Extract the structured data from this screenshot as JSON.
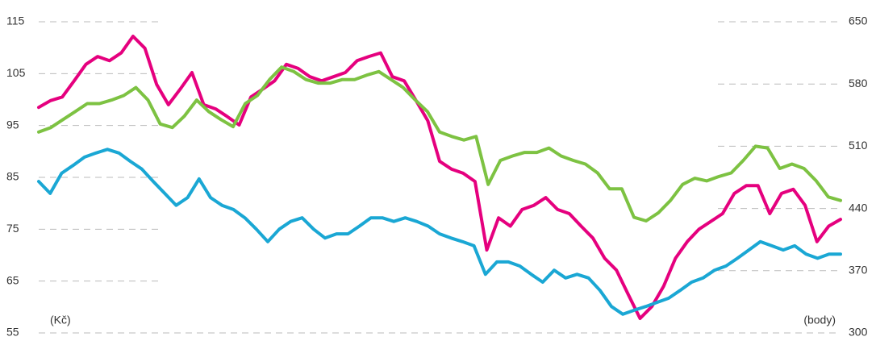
{
  "chart_data": {
    "type": "line",
    "y_label": "(Kč)",
    "y2_label": "(body)",
    "ylim": [
      55,
      115
    ],
    "yticks": [
      55,
      65,
      75,
      85,
      95,
      105,
      115
    ],
    "y2lim": [
      300,
      650
    ],
    "y2ticks": [
      300,
      370,
      440,
      510,
      580,
      650
    ],
    "grid": true,
    "series": [
      {
        "color": "#e5007e",
        "values": [
          98.5,
          99.8,
          100.5,
          103.6,
          106.8,
          108.3,
          107.5,
          109,
          112.2,
          109.9,
          102.9,
          99,
          102,
          105.2,
          99,
          98.2,
          96.7,
          95.1,
          100.5,
          102,
          103.6,
          106.8,
          106,
          104.4,
          103.6,
          104.4,
          105.2,
          107.5,
          108.3,
          109,
          104.4,
          103.6,
          99.8,
          95.9,
          88.1,
          86.6,
          85.8,
          84.2,
          71,
          77.2,
          75.6,
          78.8,
          79.6,
          81.1,
          78.8,
          78,
          75.6,
          73.3,
          69.4,
          67.1,
          62.4,
          57.8,
          60.1,
          64,
          69.4,
          72.6,
          75,
          76.5,
          78,
          81.9,
          83.4,
          83.4,
          78,
          81.9,
          82.7,
          79.6,
          72.6,
          75.6,
          76.9
        ]
      },
      {
        "color": "#7dc242",
        "axis": "y2",
        "values": [
          526,
          531,
          540,
          549,
          558,
          558,
          562,
          567,
          576,
          562,
          535,
          531,
          544,
          562,
          549,
          540,
          532,
          558,
          567,
          585,
          599,
          594,
          585,
          581,
          581,
          585,
          585,
          590,
          594,
          585,
          576,
          562,
          549,
          526,
          521,
          517,
          521,
          467,
          494,
          499,
          503,
          503,
          508,
          499,
          494,
          490,
          480,
          462,
          462,
          430,
          426,
          435,
          449,
          467,
          474,
          471,
          476,
          480,
          494,
          510,
          508,
          485,
          490,
          485,
          471,
          453,
          449
        ]
      },
      {
        "color": "#1aa7d4",
        "values": [
          84.2,
          81.9,
          85.8,
          87.3,
          88.9,
          89.7,
          90.4,
          89.7,
          88.1,
          86.6,
          84.2,
          81.9,
          79.6,
          81.1,
          84.7,
          81.1,
          79.6,
          78.8,
          77.2,
          75,
          72.6,
          75,
          76.5,
          77.2,
          75,
          73.3,
          74.1,
          74.1,
          75.6,
          77.2,
          77.2,
          76.5,
          77.2,
          76.5,
          75.6,
          74.1,
          73.3,
          72.6,
          71.8,
          66.3,
          68.7,
          68.7,
          67.9,
          66.3,
          64.8,
          67.1,
          65.6,
          66.3,
          65.6,
          63.2,
          60.1,
          58.6,
          59.4,
          60.1,
          60.9,
          61.7,
          63.2,
          64.8,
          65.6,
          67.1,
          67.9,
          69.4,
          71,
          72.6,
          71.8,
          71,
          71.8,
          70.2,
          69.4,
          70.2,
          70.2
        ]
      }
    ]
  }
}
